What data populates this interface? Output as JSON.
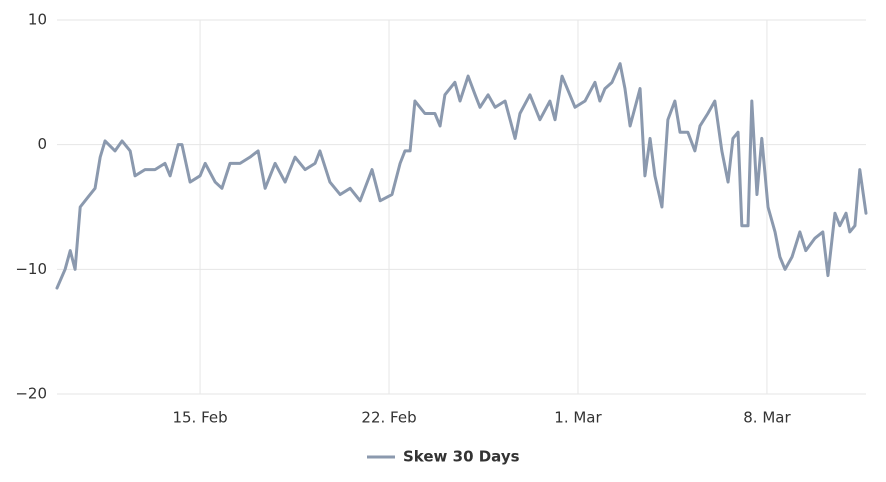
{
  "chart_data": {
    "type": "line",
    "x": [
      9.7,
      10.0,
      10.19,
      10.37,
      10.56,
      10.85,
      11.11,
      11.3,
      11.48,
      11.85,
      12.11,
      12.41,
      12.59,
      12.96,
      13.33,
      13.7,
      13.89,
      14.19,
      14.33,
      14.63,
      15.0,
      15.19,
      15.56,
      15.81,
      16.11,
      16.48,
      16.85,
      17.15,
      17.41,
      17.78,
      18.15,
      18.52,
      18.89,
      19.26,
      19.44,
      19.81,
      20.19,
      20.56,
      20.93,
      21.37,
      21.67,
      22.11,
      22.41,
      22.59,
      22.78,
      22.96,
      23.33,
      23.7,
      23.89,
      24.07,
      24.44,
      24.63,
      24.93,
      25.19,
      25.37,
      25.67,
      25.93,
      26.3,
      26.67,
      26.85,
      27.22,
      27.59,
      27.96,
      28.15,
      28.41,
      28.7,
      28.89,
      29.26,
      29.63,
      29.81,
      30.0,
      30.26,
      30.56,
      30.74,
      30.93,
      31.3,
      31.48,
      31.67,
      31.85,
      32.11,
      32.33,
      32.59,
      32.78,
      33.07,
      33.33,
      33.52,
      33.81,
      34.07,
      34.33,
      34.56,
      34.74,
      34.93,
      35.07,
      35.3,
      35.44,
      35.63,
      35.81,
      36.04,
      36.3,
      36.48,
      36.67,
      36.93,
      37.22,
      37.44,
      37.78,
      38.07,
      38.26,
      38.52,
      38.7,
      38.93,
      39.07,
      39.26,
      39.44,
      39.67
    ],
    "series": [
      {
        "name": "Skew 30 Days",
        "color": "#8b99ae",
        "values": [
          -11.5,
          -10,
          -8.5,
          -10,
          -5,
          -4.2,
          -3.5,
          -1,
          0.3,
          -0.5,
          0.3,
          -0.5,
          -2.5,
          -2,
          -2,
          -1.5,
          -2.5,
          0,
          0,
          -3,
          -2.5,
          -1.5,
          -3,
          -3.5,
          -1.5,
          -1.5,
          -1,
          -0.5,
          -3.5,
          -1.5,
          -3,
          -1,
          -2,
          -1.5,
          -0.5,
          -3,
          -4,
          -3.5,
          -4.5,
          -2,
          -4.5,
          -4,
          -1.5,
          -0.5,
          -0.5,
          3.5,
          2.5,
          2.5,
          1.5,
          4,
          5,
          3.5,
          5.5,
          4,
          3,
          4,
          3,
          3.5,
          0.5,
          2.5,
          4,
          2,
          3.5,
          2,
          5.5,
          4,
          3,
          3.5,
          5,
          3.5,
          4.5,
          5,
          6.5,
          4.5,
          1.5,
          4.5,
          -2.5,
          0.5,
          -2.5,
          -5,
          2,
          3.5,
          1,
          1,
          -0.5,
          1.5,
          2.5,
          3.5,
          -0.5,
          -3,
          0.5,
          1,
          -6.5,
          -6.5,
          3.5,
          -4,
          0.5,
          -5,
          -7,
          -9,
          -10,
          -9,
          -7,
          -8.5,
          -7.5,
          -7,
          -10.5,
          -5.5,
          -6.5,
          -5.5,
          -7,
          -6.5,
          -2,
          -5.5
        ]
      }
    ],
    "xlim": [
      9.7,
      39.67
    ],
    "xticks": [
      {
        "value": 15,
        "label": "15. Feb"
      },
      {
        "value": 22,
        "label": "22. Feb"
      },
      {
        "value": 29,
        "label": "1. Mar"
      },
      {
        "value": 36,
        "label": "8. Mar"
      }
    ],
    "ylim": [
      -20,
      10
    ],
    "yticks": [
      {
        "value": -20,
        "label": "−20"
      },
      {
        "value": -10,
        "label": "−10"
      },
      0,
      10
    ],
    "grid": true
  }
}
